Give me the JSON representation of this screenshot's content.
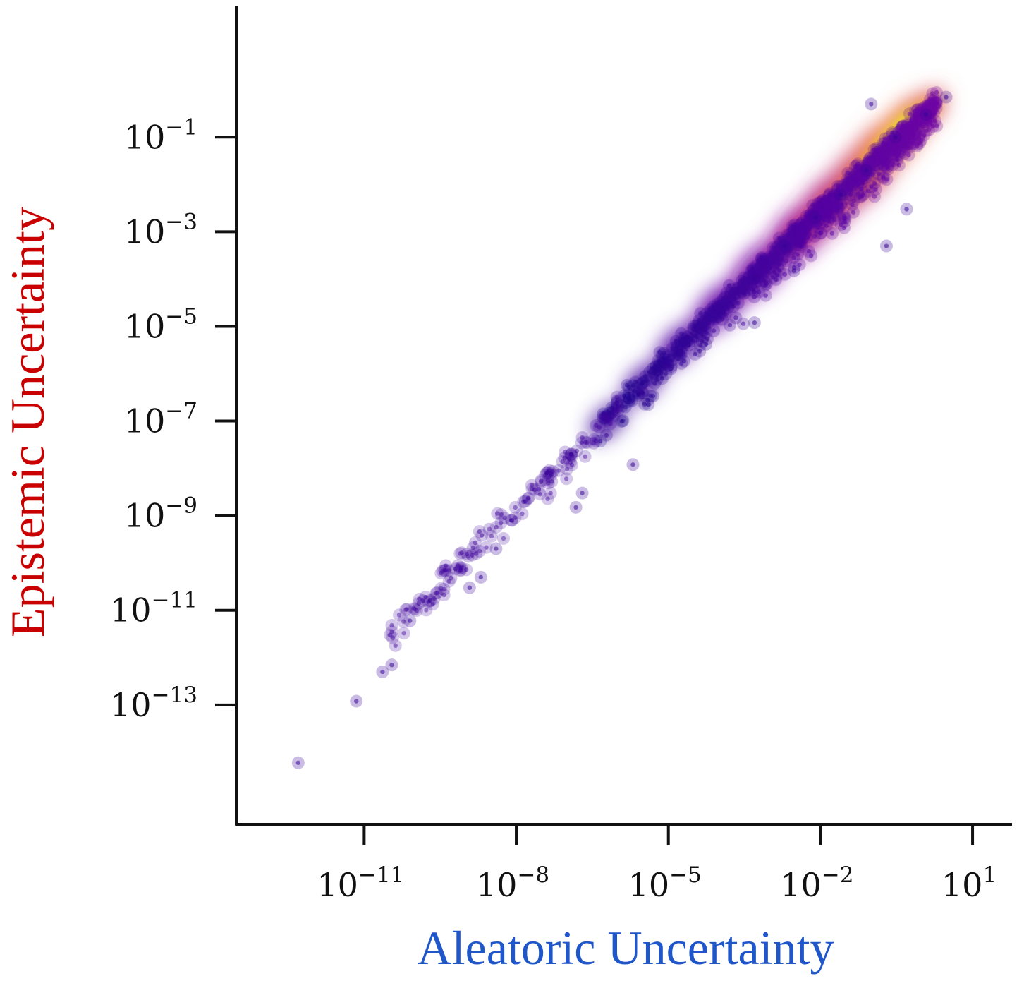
{
  "chart_data": {
    "type": "scatter",
    "xlabel": "Aleatoric Uncertainty",
    "ylabel": "Epistemic Uncertainty",
    "xlabel_color": "#1f56c9",
    "ylabel_color": "#c80000",
    "x_scale": "log",
    "y_scale": "log",
    "xlim": [
      3e-14,
      60
    ],
    "ylim": [
      3e-16,
      60
    ],
    "x_ticks": [
      {
        "value": 1e-11,
        "base": "10",
        "exp": "−11"
      },
      {
        "value": 1e-08,
        "base": "10",
        "exp": "−8"
      },
      {
        "value": 1e-05,
        "base": "10",
        "exp": "−5"
      },
      {
        "value": 0.01,
        "base": "10",
        "exp": "−2"
      },
      {
        "value": 10,
        "base": "10",
        "exp": "1"
      }
    ],
    "y_ticks": [
      {
        "value": 0.1,
        "base": "10",
        "exp": "−1"
      },
      {
        "value": 0.001,
        "base": "10",
        "exp": "−3"
      },
      {
        "value": 1e-05,
        "base": "10",
        "exp": "−5"
      },
      {
        "value": 1e-07,
        "base": "10",
        "exp": "−7"
      },
      {
        "value": 1e-09,
        "base": "10",
        "exp": "−9"
      },
      {
        "value": 1e-11,
        "base": "10",
        "exp": "−11"
      },
      {
        "value": 1e-13,
        "base": "10",
        "exp": "−13"
      }
    ],
    "colormap": "plasma (density)",
    "grid": false,
    "legend": "none",
    "points": [
      {
        "x": 5e-13,
        "y": 6e-15
      },
      {
        "x": 7e-12,
        "y": 1.2e-13
      },
      {
        "x": 2.3e-11,
        "y": 5e-13
      },
      {
        "x": 3.5e-11,
        "y": 7e-13
      },
      {
        "x": 8e-11,
        "y": 6e-12
      },
      {
        "x": 2e-10,
        "y": 1.6e-11
      },
      {
        "x": 1.2e-09,
        "y": 3e-11
      },
      {
        "x": 2e-09,
        "y": 5e-11
      },
      {
        "x": 4e-09,
        "y": 2e-10
      },
      {
        "x": 8e-09,
        "y": 8e-10
      },
      {
        "x": 1.5e-08,
        "y": 2e-09
      },
      {
        "x": 4e-08,
        "y": 8e-09
      },
      {
        "x": 1.2e-07,
        "y": 2e-08
      },
      {
        "x": 1.5e-07,
        "y": 1.5e-09
      },
      {
        "x": 2e-07,
        "y": 3e-09
      },
      {
        "x": 6e-07,
        "y": 5e-08
      },
      {
        "x": 2e-06,
        "y": 1.2e-08
      },
      {
        "x": 1e-06,
        "y": 2e-07
      },
      {
        "x": 3e-06,
        "y": 4e-07
      },
      {
        "x": 1e-05,
        "y": 1.5e-06
      },
      {
        "x": 5e-05,
        "y": 6e-06
      },
      {
        "x": 0.00015,
        "y": 2.5e-05
      },
      {
        "x": 0.0005,
        "y": 0.0001
      },
      {
        "x": 0.002,
        "y": 0.0005
      },
      {
        "x": 0.008,
        "y": 0.002
      },
      {
        "x": 0.025,
        "y": 0.006
      },
      {
        "x": 0.08,
        "y": 0.02
      },
      {
        "x": 0.3,
        "y": 0.1
      },
      {
        "x": 1.2,
        "y": 0.3
      },
      {
        "x": 3,
        "y": 0.7
      },
      {
        "x": 0.1,
        "y": 0.5
      },
      {
        "x": 0.2,
        "y": 0.0005
      },
      {
        "x": 0.5,
        "y": 0.003
      },
      {
        "x": 0.003,
        "y": 0.00015
      },
      {
        "x": 0.0005,
        "y": 1.2e-05
      }
    ]
  }
}
